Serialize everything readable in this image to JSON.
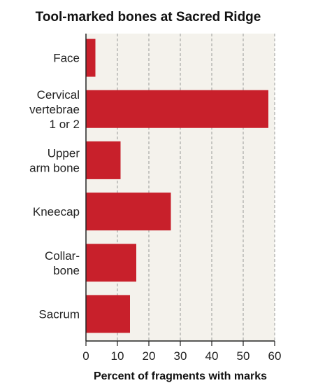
{
  "chart_data": {
    "type": "bar",
    "orientation": "horizontal",
    "title": "Tool-marked bones at Sacred Ridge",
    "xlabel": "Percent of fragments with marks",
    "ylabel": "",
    "categories": [
      [
        "Face"
      ],
      [
        "Cervical",
        "vertebrae",
        "1 or 2"
      ],
      [
        "Upper",
        "arm bone"
      ],
      [
        "Kneecap"
      ],
      [
        "Collar-",
        "bone"
      ],
      [
        "Sacrum"
      ]
    ],
    "values": [
      3,
      58,
      11,
      27,
      16,
      14
    ],
    "xlim": [
      0,
      60
    ],
    "xticks": [
      "0",
      "10",
      "20",
      "30",
      "40",
      "50",
      "60"
    ],
    "grid": true,
    "legend": "none",
    "colors": {
      "bar": "#c8202b",
      "plot_background": "#f4f2ec",
      "grid": "#999999",
      "axis": "#222222"
    }
  }
}
